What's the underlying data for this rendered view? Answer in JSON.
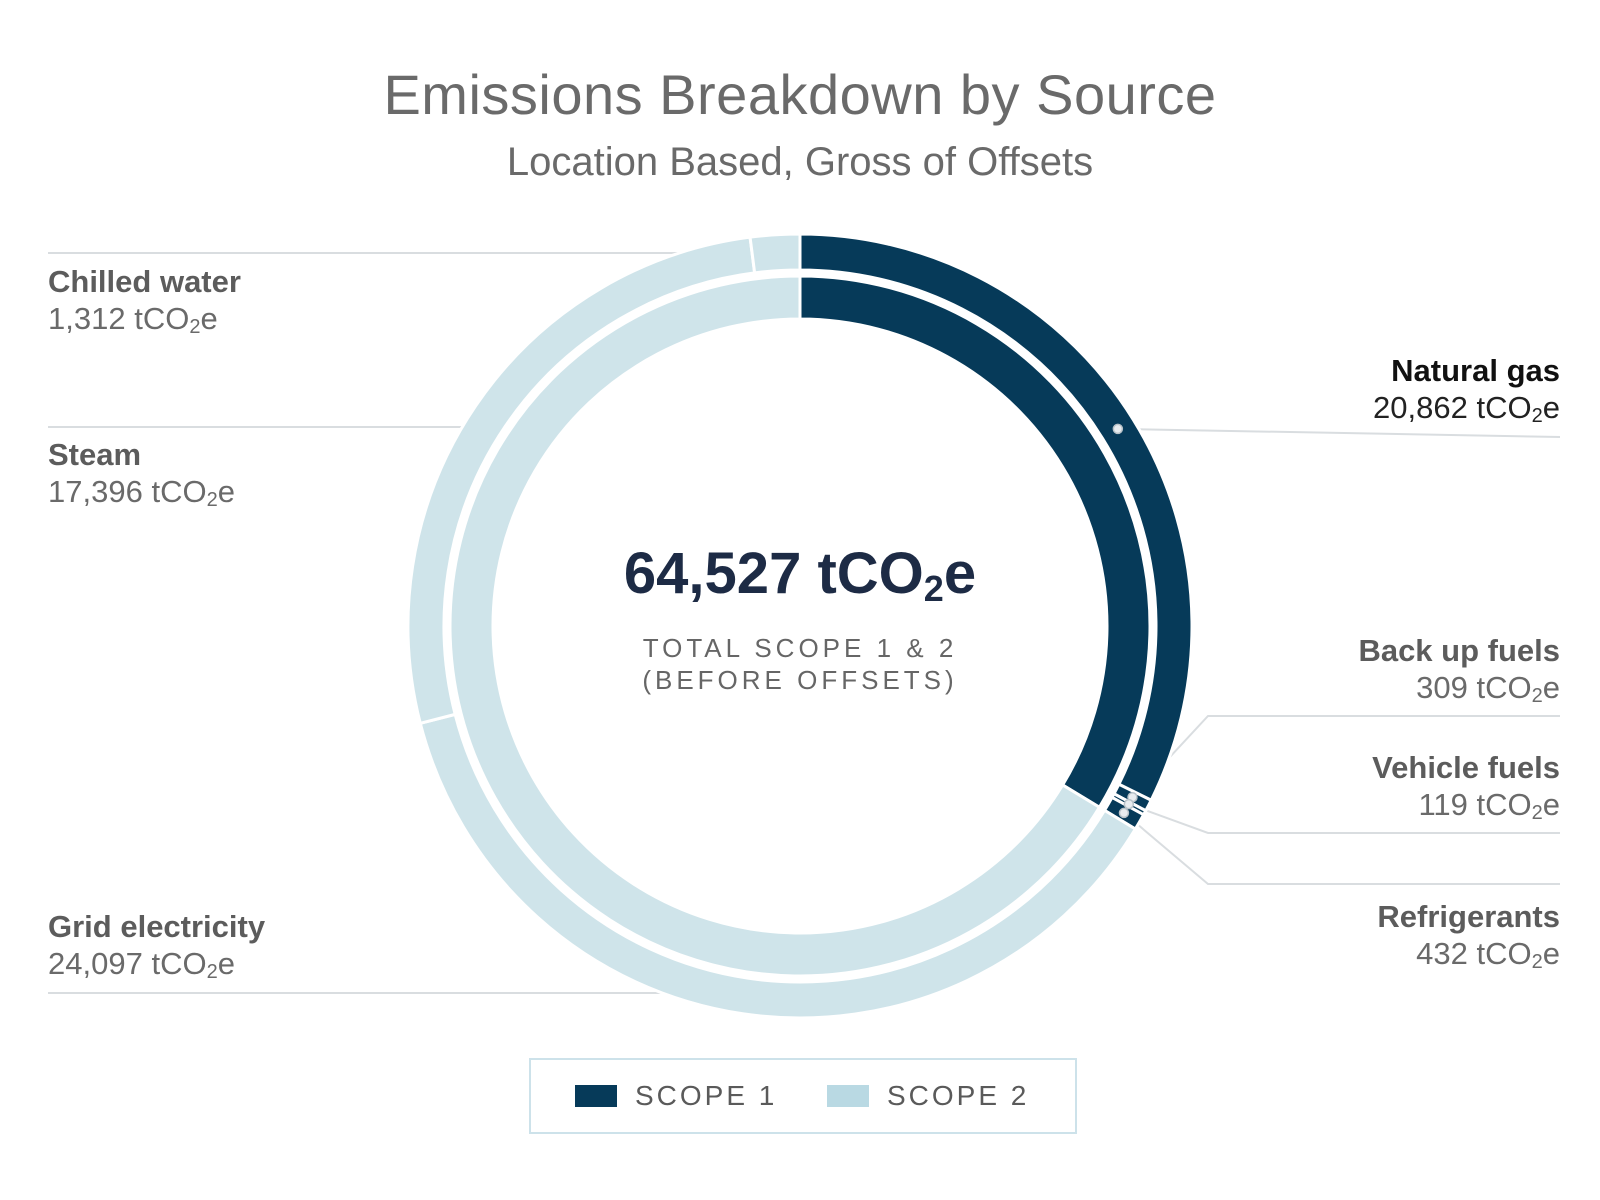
{
  "chart_data": {
    "type": "pie",
    "title": "Emissions Breakdown by Source",
    "subtitle": "Location Based, Gross of Offsets",
    "unit_prefix": "tCO",
    "unit_sub": "2",
    "unit_suffix": "e",
    "center": {
      "total_value": "64,527",
      "caption_line1": "TOTAL SCOPE 1 & 2",
      "caption_line2": "(BEFORE OFFSETS)"
    },
    "scopes": [
      {
        "name": "SCOPE 1",
        "color": "#063a59",
        "value": 21722
      },
      {
        "name": "SCOPE 2",
        "color": "#cfe4ea",
        "value": 42805
      }
    ],
    "legend_swatch_colors": [
      "#063a59",
      "#b9d9e3"
    ],
    "slices": [
      {
        "label": "Natural gas",
        "value": 20862,
        "value_text": "20,862",
        "scope": "SCOPE 1"
      },
      {
        "label": "Back up fuels",
        "value": 309,
        "value_text": "309",
        "scope": "SCOPE 1"
      },
      {
        "label": "Vehicle fuels",
        "value": 119,
        "value_text": "119",
        "scope": "SCOPE 1"
      },
      {
        "label": "Refrigerants",
        "value": 432,
        "value_text": "432",
        "scope": "SCOPE 1"
      },
      {
        "label": "Grid electricity",
        "value": 24097,
        "value_text": "24,097",
        "scope": "SCOPE 2"
      },
      {
        "label": "Steam",
        "value": 17396,
        "value_text": "17,396",
        "scope": "SCOPE 2"
      },
      {
        "label": "Chilled water",
        "value": 1312,
        "value_text": "1,312",
        "scope": "SCOPE 2"
      }
    ]
  }
}
